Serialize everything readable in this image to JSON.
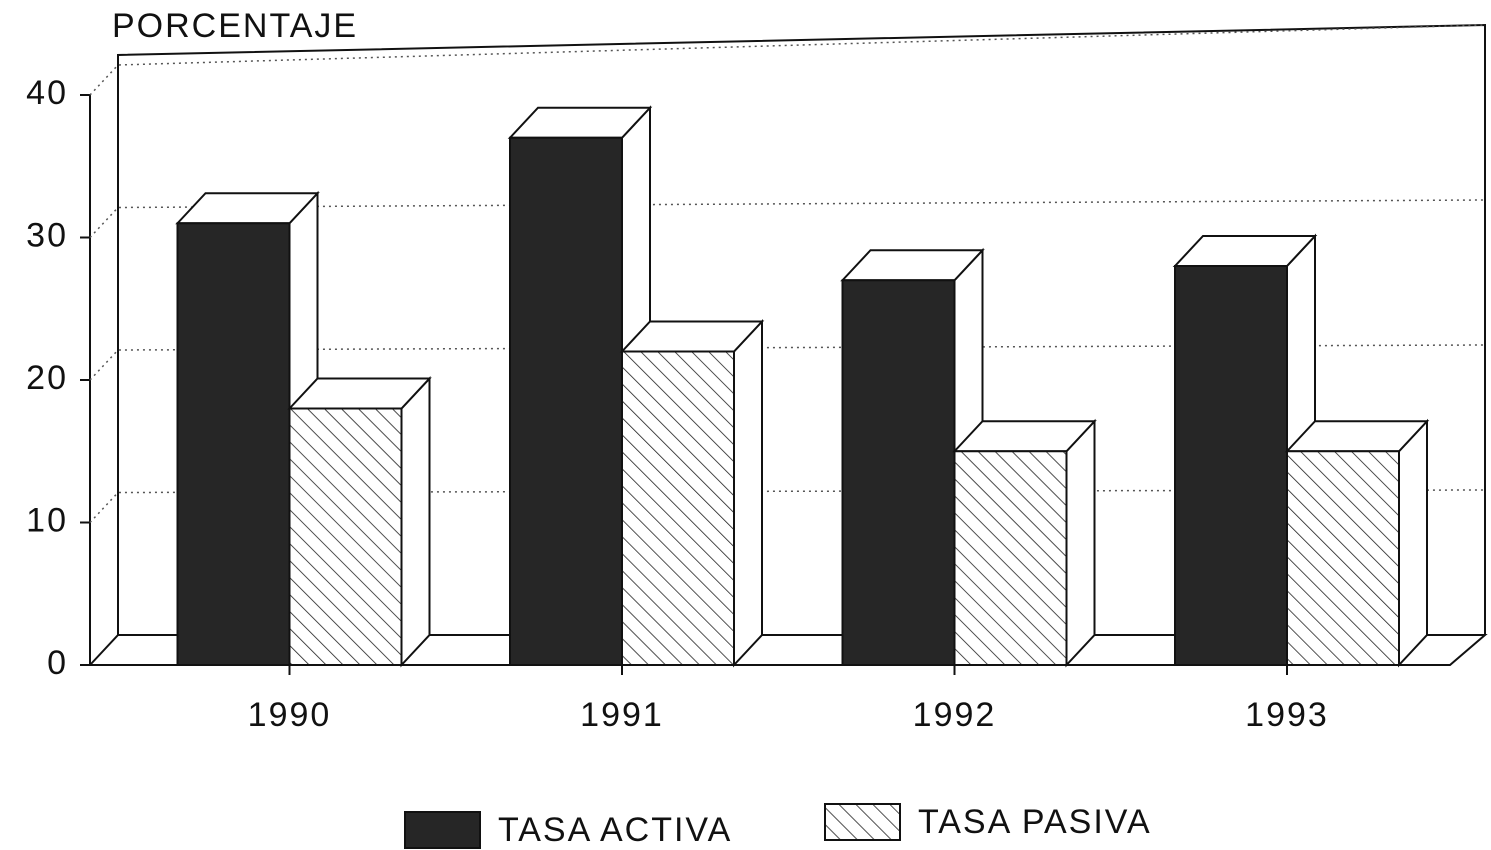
{
  "chart_data": {
    "type": "bar3d",
    "y_label": "PORCENTAJE",
    "categories": [
      "1990",
      "1991",
      "1992",
      "1993"
    ],
    "series": [
      {
        "name": "TASA ACTIVA",
        "color": "#262626",
        "pattern": "solid",
        "values": [
          31,
          37,
          27,
          28
        ]
      },
      {
        "name": "TASA PASIVA",
        "color": "#ffffff",
        "pattern": "hatch",
        "values": [
          18,
          22,
          15,
          15
        ]
      }
    ],
    "ylim": [
      0,
      40
    ],
    "yticks": [
      0,
      10,
      20,
      30,
      40
    ],
    "grid": true
  }
}
